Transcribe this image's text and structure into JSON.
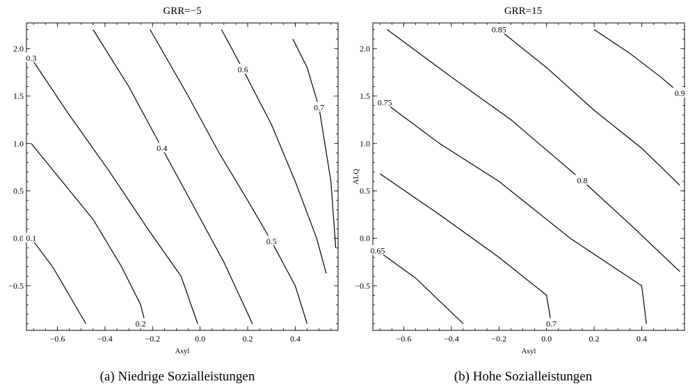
{
  "chart_data": [
    {
      "type": "contour",
      "title": "GRR=−5",
      "xlabel": "Asyl",
      "ylabel": "",
      "caption": "(a) Niedrige Sozialleistungen",
      "xlim": [
        -0.73,
        0.58
      ],
      "ylim": [
        -0.97,
        2.27
      ],
      "xticks": [
        -0.6,
        -0.4,
        -0.2,
        0.0,
        0.2,
        0.4
      ],
      "xtick_labels": [
        "−0.6",
        "−0.4",
        "−0.2",
        "0.0",
        "0.2",
        "0.4"
      ],
      "yticks": [
        -0.5,
        0.0,
        0.5,
        1.0,
        1.5,
        2.0
      ],
      "ytick_labels": [
        "−0.5",
        "0.0",
        "0.5",
        "1.0",
        "1.5",
        "2.0"
      ],
      "grid": false,
      "contours": [
        {
          "label": "0.1",
          "label_at": [
            -0.71,
            0.0
          ],
          "points": [
            [
              -0.71,
              0.0
            ],
            [
              -0.62,
              -0.3
            ],
            [
              -0.55,
              -0.6
            ],
            [
              -0.48,
              -0.9
            ]
          ]
        },
        {
          "label": "0.2",
          "label_at": [
            -0.25,
            -0.9
          ],
          "points": [
            [
              -0.71,
              1.0
            ],
            [
              -0.58,
              0.6
            ],
            [
              -0.45,
              0.2
            ],
            [
              -0.33,
              -0.3
            ],
            [
              -0.25,
              -0.7
            ],
            [
              -0.23,
              -0.9
            ]
          ]
        },
        {
          "label": "0.3",
          "label_at": [
            -0.71,
            1.9
          ],
          "points": [
            [
              -0.71,
              1.9
            ],
            [
              -0.55,
              1.3
            ],
            [
              -0.38,
              0.7
            ],
            [
              -0.22,
              0.1
            ],
            [
              -0.08,
              -0.4
            ],
            [
              -0.01,
              -0.9
            ]
          ]
        },
        {
          "label": "0.4",
          "label_at": [
            -0.16,
            0.95
          ],
          "points": [
            [
              -0.45,
              2.2
            ],
            [
              -0.3,
              1.6
            ],
            [
              -0.16,
              0.95
            ],
            [
              -0.03,
              0.35
            ],
            [
              0.1,
              -0.25
            ],
            [
              0.22,
              -0.9
            ]
          ]
        },
        {
          "label": "0.5",
          "label_at": [
            0.3,
            -0.03
          ],
          "points": [
            [
              -0.21,
              2.2
            ],
            [
              -0.05,
              1.5
            ],
            [
              0.08,
              0.9
            ],
            [
              0.2,
              0.4
            ],
            [
              0.3,
              -0.03
            ],
            [
              0.4,
              -0.5
            ],
            [
              0.45,
              -0.9
            ]
          ]
        },
        {
          "label": "0.6",
          "label_at": [
            0.18,
            1.78
          ],
          "points": [
            [
              0.09,
              2.2
            ],
            [
              0.18,
              1.78
            ],
            [
              0.3,
              1.2
            ],
            [
              0.4,
              0.6
            ],
            [
              0.49,
              0.0
            ],
            [
              0.53,
              -0.37
            ]
          ]
        },
        {
          "label": "0.7",
          "label_at": [
            0.5,
            1.38
          ],
          "points": [
            [
              0.39,
              2.1
            ],
            [
              0.45,
              1.8
            ],
            [
              0.5,
              1.38
            ],
            [
              0.55,
              0.6
            ],
            [
              0.57,
              -0.1
            ]
          ]
        }
      ]
    },
    {
      "type": "contour",
      "title": "GRR=15",
      "xlabel": "Asyl",
      "ylabel": "ALQ",
      "caption": "(b) Hohe Sozialleistungen",
      "xlim": [
        -0.73,
        0.58
      ],
      "ylim": [
        -0.97,
        2.27
      ],
      "xticks": [
        -0.6,
        -0.4,
        -0.2,
        0.0,
        0.2,
        0.4
      ],
      "xtick_labels": [
        "−0.6",
        "−0.4",
        "−0.2",
        "0.0",
        "0.2",
        "0.4"
      ],
      "yticks": [
        -0.5,
        0.0,
        0.5,
        1.0,
        1.5,
        2.0
      ],
      "ytick_labels": [
        "−0.5",
        "0.0",
        "0.5",
        "1.0",
        "1.5",
        "2.0"
      ],
      "grid": false,
      "contours": [
        {
          "label": "0.65",
          "label_at": [
            -0.71,
            -0.13
          ],
          "points": [
            [
              -0.71,
              -0.13
            ],
            [
              -0.55,
              -0.42
            ],
            [
              -0.35,
              -0.9
            ]
          ]
        },
        {
          "label": "0.7",
          "label_at": [
            0.02,
            -0.9
          ],
          "points": [
            [
              -0.7,
              0.68
            ],
            [
              -0.45,
              0.25
            ],
            [
              -0.2,
              -0.2
            ],
            [
              0.0,
              -0.6
            ],
            [
              0.02,
              -0.9
            ]
          ]
        },
        {
          "label": "0.75",
          "label_at": [
            -0.68,
            1.43
          ],
          "points": [
            [
              -0.68,
              1.43
            ],
            [
              -0.45,
              1.0
            ],
            [
              -0.2,
              0.6
            ],
            [
              0.1,
              0.0
            ],
            [
              0.4,
              -0.5
            ],
            [
              0.42,
              -0.9
            ]
          ]
        },
        {
          "label": "0.8",
          "label_at": [
            0.15,
            0.61
          ],
          "points": [
            [
              -0.67,
              2.2
            ],
            [
              -0.4,
              1.7
            ],
            [
              -0.15,
              1.25
            ],
            [
              0.15,
              0.61
            ],
            [
              0.35,
              0.15
            ],
            [
              0.56,
              -0.35
            ]
          ]
        },
        {
          "label": "0.85",
          "label_at": [
            -0.2,
            2.2
          ],
          "points": [
            [
              -0.2,
              2.2
            ],
            [
              0.0,
              1.8
            ],
            [
              0.2,
              1.35
            ],
            [
              0.4,
              0.95
            ],
            [
              0.56,
              0.56
            ]
          ]
        },
        {
          "label": "0.9",
          "label_at": [
            0.56,
            1.53
          ],
          "points": [
            [
              0.2,
              2.2
            ],
            [
              0.35,
              1.95
            ],
            [
              0.48,
              1.7
            ],
            [
              0.56,
              1.53
            ]
          ]
        }
      ]
    }
  ]
}
